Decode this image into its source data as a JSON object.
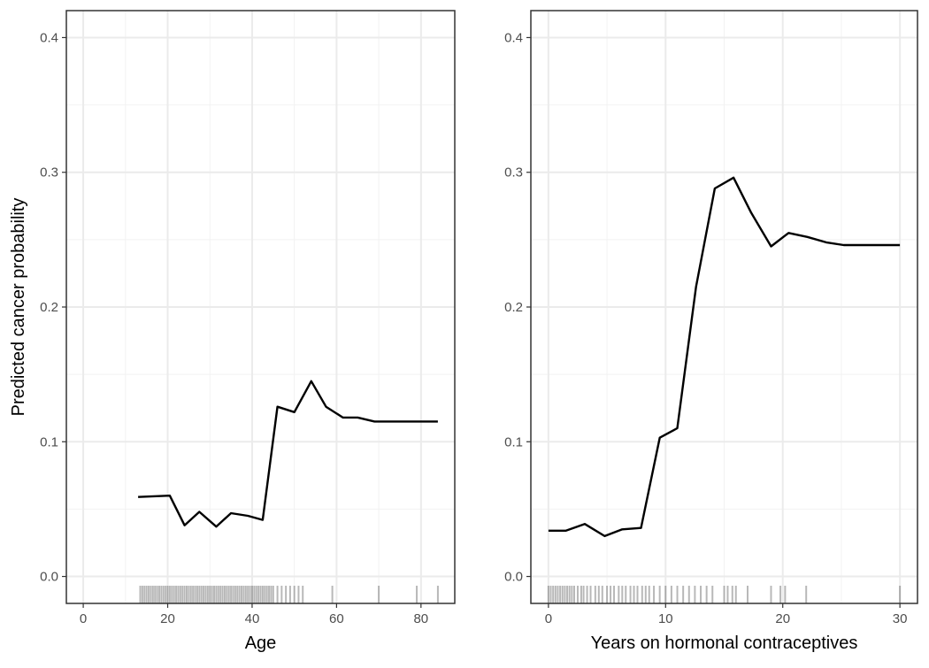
{
  "chart_data": [
    {
      "type": "line",
      "title": "",
      "xlabel": "Age",
      "ylabel": "Predicted cancer probability",
      "xlim": [
        -4,
        88
      ],
      "ylim": [
        -0.02,
        0.42
      ],
      "x_ticks": [
        0,
        20,
        40,
        60,
        80
      ],
      "x_tick_labels": [
        "0",
        "20",
        "40",
        "60",
        "80"
      ],
      "y_ticks": [
        0.0,
        0.1,
        0.2,
        0.3,
        0.4
      ],
      "y_tick_labels": [
        "0.0",
        "0.1",
        "0.2",
        "0.3",
        "0.4"
      ],
      "grid": true,
      "series": [
        {
          "x": [
            13,
            20.5,
            24,
            27.5,
            31.5,
            35,
            39,
            42.5,
            46,
            50,
            54,
            57.5,
            61.5,
            65,
            69,
            84
          ],
          "y": [
            0.059,
            0.06,
            0.038,
            0.048,
            0.037,
            0.047,
            0.045,
            0.042,
            0.126,
            0.122,
            0.145,
            0.126,
            0.118,
            0.118,
            0.115,
            0.115
          ]
        }
      ],
      "rug": [
        13.5,
        14,
        14.5,
        15,
        15.5,
        16,
        16.5,
        17,
        17.5,
        18,
        18.5,
        19,
        19.5,
        20,
        20.5,
        21,
        21.5,
        22,
        22.5,
        23,
        23.5,
        24,
        24.5,
        25,
        25.5,
        26,
        26.5,
        27,
        27.5,
        28,
        28.5,
        29,
        29.5,
        30,
        30.5,
        31,
        31.5,
        32,
        32.5,
        33,
        33.5,
        34,
        34.5,
        35,
        35.5,
        36,
        36.5,
        37,
        37.5,
        38,
        38.5,
        39,
        39.5,
        40,
        40.5,
        41,
        41.5,
        42,
        42.5,
        43,
        43.5,
        44,
        44.5,
        45,
        46,
        47,
        48,
        49,
        50,
        51,
        52,
        59,
        70,
        79,
        84
      ]
    },
    {
      "type": "line",
      "title": "",
      "xlabel": "Years on hormonal contraceptives",
      "ylabel": "",
      "xlim": [
        -1.5,
        31.5
      ],
      "ylim": [
        -0.02,
        0.42
      ],
      "x_ticks": [
        0,
        10,
        20,
        30
      ],
      "x_tick_labels": [
        "0",
        "10",
        "20",
        "30"
      ],
      "y_ticks": [
        0.0,
        0.1,
        0.2,
        0.3,
        0.4
      ],
      "y_tick_labels": [
        "0.0",
        "0.1",
        "0.2",
        "0.3",
        "0.4"
      ],
      "grid": true,
      "series": [
        {
          "x": [
            0,
            1.5,
            3.1,
            4.8,
            6.3,
            7.9,
            9.5,
            11,
            12.6,
            14.2,
            15.8,
            17.3,
            19,
            20.5,
            22.1,
            23.7,
            25.2,
            30
          ],
          "y": [
            0.034,
            0.034,
            0.039,
            0.03,
            0.035,
            0.036,
            0.103,
            0.11,
            0.215,
            0.288,
            0.296,
            0.27,
            0.245,
            0.255,
            0.252,
            0.248,
            0.246,
            0.246
          ]
        }
      ],
      "rug": [
        0,
        0.2,
        0.4,
        0.6,
        0.8,
        1,
        1.2,
        1.4,
        1.6,
        1.8,
        2,
        2.2,
        2.5,
        2.8,
        3,
        3.3,
        3.6,
        4,
        4.3,
        4.6,
        5,
        5.3,
        5.6,
        6,
        6.3,
        6.6,
        7,
        7.3,
        7.6,
        8,
        8.3,
        8.6,
        9,
        9.5,
        10,
        10.5,
        11,
        11.5,
        12,
        12.5,
        13,
        13.5,
        14,
        15,
        15.3,
        15.7,
        16,
        17,
        19,
        19.8,
        20.2,
        22,
        30
      ]
    }
  ]
}
